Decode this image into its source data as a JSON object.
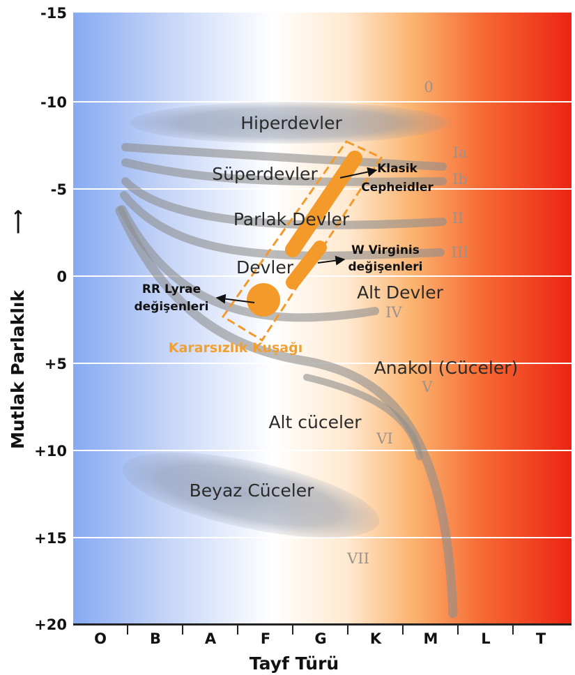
{
  "axes": {
    "y_title": "Mutlak Parlaklık",
    "y_arrow": "⟶",
    "x_title": "Tayf Türü",
    "y_ticks": [
      "-15",
      "-10",
      "-5",
      "0",
      "+5",
      "+10",
      "+15",
      "+20"
    ],
    "x_ticks": [
      "O",
      "B",
      "A",
      "F",
      "G",
      "K",
      "M",
      "L",
      "T"
    ]
  },
  "regions": {
    "hyper": "Hiperdevler",
    "super": "Süperdevler",
    "bright": "Parlak Devler",
    "giants": "Devler",
    "subgiants": "Alt Devler",
    "main": "Anakol (Cüceler)",
    "subdwarfs": "Alt cüceler",
    "white_dwarfs": "Beyaz Cüceler"
  },
  "luminosity_classes": {
    "c0": "0",
    "cIa": "Ia",
    "cIb": "Ib",
    "cII": "II",
    "cIII": "III",
    "cIV": "IV",
    "cV": "V",
    "cVI": "VI",
    "cVII": "VII"
  },
  "variables": {
    "cepheid_1": "Klasik",
    "cepheid_2": "Cepheidler",
    "wvir_1": "W Virginis",
    "wvir_2": "değişenleri",
    "rr_1": "RR Lyrae",
    "rr_2": "değişenleri"
  },
  "instability_strip": "Kararsızlık Kuşağı",
  "colors": {
    "blue": "#86aaf2",
    "white": "#ffffff",
    "orange": "#f7a03a",
    "red": "#ee2a1a",
    "strip": "#f39a2a"
  }
}
